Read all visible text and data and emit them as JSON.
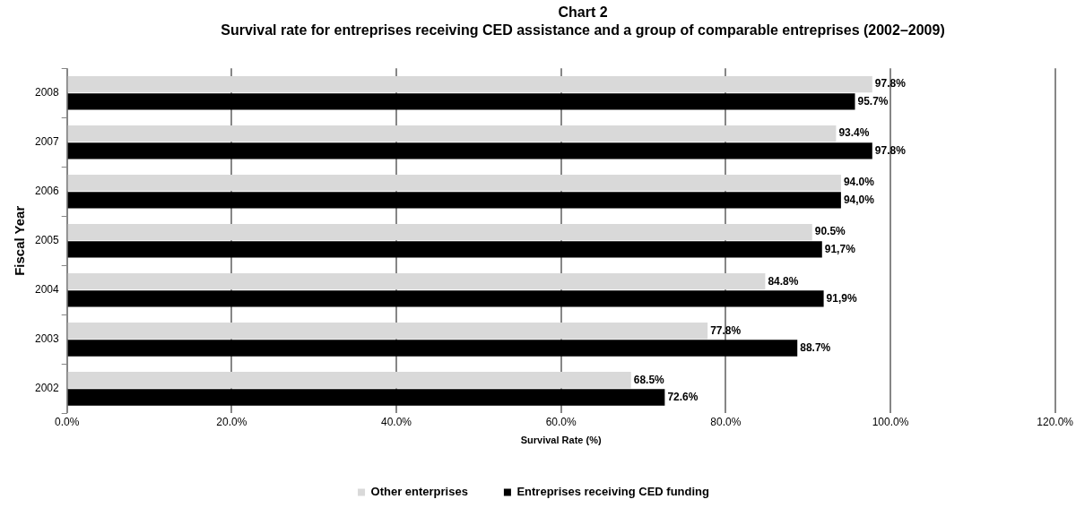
{
  "chart_data": {
    "type": "bar",
    "orientation": "horizontal",
    "title": "Chart 2",
    "subtitle": "Survival rate for entreprises receiving CED assistance and a group of comparable entreprises (2002–2009)",
    "xlabel": "Survival Rate (%)",
    "ylabel": "Fiscal Year",
    "categories": [
      "2008",
      "2007",
      "2006",
      "2005",
      "2004",
      "2003",
      "2002"
    ],
    "series": [
      {
        "name": "Other enterprises",
        "color": "#d9d9d9",
        "values": [
          97.8,
          93.4,
          94.0,
          90.5,
          84.8,
          77.8,
          68.5
        ],
        "value_labels": [
          "97.8%",
          "93.4%",
          "94.0%",
          "90.5%",
          "84.8%",
          "77.8%",
          "68.5%"
        ]
      },
      {
        "name": "Entreprises receiving CED funding",
        "color": "#000000",
        "values": [
          95.7,
          97.8,
          94.0,
          91.7,
          91.9,
          88.7,
          72.6
        ],
        "value_labels": [
          "95.7%",
          "97.8%",
          "94,0%",
          "91,7%",
          "91,9%",
          "88.7%",
          "72.6%"
        ]
      }
    ],
    "xlim": [
      0,
      120
    ],
    "xticks": [
      {
        "value": 0,
        "label": "0.0%"
      },
      {
        "value": 20,
        "label": "20.0%"
      },
      {
        "value": 40,
        "label": "40.0%"
      },
      {
        "value": 60,
        "label": "60.0%"
      },
      {
        "value": 80,
        "label": "80.0%"
      },
      {
        "value": 100,
        "label": "100.0%"
      },
      {
        "value": 120,
        "label": "120.0%"
      }
    ],
    "grid": "x",
    "legend": "bottom"
  }
}
